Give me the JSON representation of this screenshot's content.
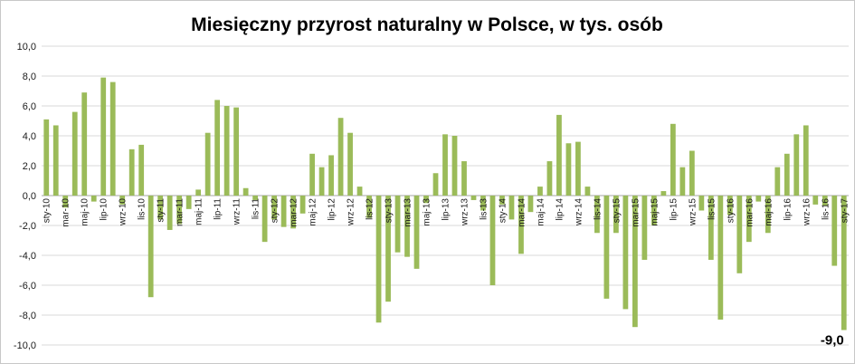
{
  "chart_data": {
    "type": "bar",
    "title": "Miesięczny przyrost naturalny w Polsce, w tys. osób",
    "xlabel": "",
    "ylabel": "",
    "ylim": [
      -10,
      10
    ],
    "y_ticks": [
      "10,0",
      "8,0",
      "6,0",
      "4,0",
      "2,0",
      "0,0",
      "-2,0",
      "-4,0",
      "-6,0",
      "-8,0",
      "-10,0"
    ],
    "y_tick_values": [
      10,
      8,
      6,
      4,
      2,
      0,
      -2,
      -4,
      -6,
      -8,
      -10
    ],
    "grid": true,
    "legend": "none",
    "bar_color": "#9bbb59",
    "categories": [
      "sty-10",
      "lut-10",
      "mar-10",
      "kwi-10",
      "maj-10",
      "cze-10",
      "lip-10",
      "sie-10",
      "wrz-10",
      "paź-10",
      "lis-10",
      "gru-10",
      "sty-11",
      "lut-11",
      "mar-11",
      "kwi-11",
      "maj-11",
      "cze-11",
      "lip-11",
      "sie-11",
      "wrz-11",
      "paź-11",
      "lis-11",
      "gru-11",
      "sty-12",
      "lut-12",
      "mar-12",
      "kwi-12",
      "maj-12",
      "cze-12",
      "lip-12",
      "sie-12",
      "wrz-12",
      "paź-12",
      "lis-12",
      "gru-12",
      "sty-13",
      "lut-13",
      "mar-13",
      "kwi-13",
      "maj-13",
      "cze-13",
      "lip-13",
      "sie-13",
      "wrz-13",
      "paź-13",
      "lis-13",
      "gru-13",
      "sty-14",
      "lut-14",
      "mar-14",
      "kwi-14",
      "maj-14",
      "cze-14",
      "lip-14",
      "sie-14",
      "wrz-14",
      "paź-14",
      "lis-14",
      "gru-14",
      "sty-15",
      "lut-15",
      "mar-15",
      "kwi-15",
      "maj-15",
      "cze-15",
      "lip-15",
      "sie-15",
      "wrz-15",
      "paź-15",
      "lis-15",
      "gru-15",
      "sty-16",
      "lut-16",
      "mar-16",
      "kwi-16",
      "maj-16",
      "cze-16",
      "lip-16",
      "sie-16",
      "wrz-16",
      "paź-16",
      "lis-16",
      "gru-16",
      "sty-17"
    ],
    "shown_tick_labels": [
      "sty-10",
      "mar-10",
      "maj-10",
      "lip-10",
      "wrz-10",
      "lis-10",
      "sty-11",
      "mar-11",
      "maj-11",
      "lip-11",
      "wrz-11",
      "lis-11",
      "sty-12",
      "mar-12",
      "maj-12",
      "lip-12",
      "wrz-12",
      "lis-12",
      "sty-13",
      "mar-13",
      "maj-13",
      "lip-13",
      "wrz-13",
      "lis-13",
      "sty-14",
      "mar-14",
      "maj-14",
      "lip-14",
      "wrz-14",
      "lis-14",
      "sty-15",
      "mar-15",
      "maj-15",
      "lip-15",
      "wrz-15",
      "lis-15",
      "sty-16",
      "mar-16",
      "maj-16",
      "lip-16",
      "wrz-16",
      "lis-16",
      "sty-17"
    ],
    "values": [
      5.1,
      4.7,
      -0.8,
      5.6,
      6.9,
      -0.4,
      7.9,
      7.6,
      -0.6,
      3.1,
      3.4,
      -6.8,
      -1.6,
      -2.3,
      -1.9,
      -0.9,
      0.4,
      4.2,
      6.4,
      6.0,
      5.9,
      0.5,
      -0.3,
      -3.1,
      -1.6,
      -2.1,
      -2.2,
      -1.2,
      2.8,
      1.9,
      2.7,
      5.2,
      4.2,
      0.6,
      -1.5,
      -8.5,
      -7.1,
      -3.8,
      -4.1,
      -4.9,
      -0.5,
      1.5,
      4.1,
      4.0,
      2.3,
      -0.3,
      -1.0,
      -6.0,
      -0.6,
      -1.6,
      -3.9,
      -1.1,
      0.6,
      2.3,
      5.4,
      3.5,
      3.6,
      0.6,
      -2.5,
      -6.9,
      -2.5,
      -7.6,
      -8.8,
      -4.3,
      -2.0,
      0.3,
      4.8,
      1.9,
      3.0,
      -1.0,
      -4.3,
      -8.3,
      -1.3,
      -5.2,
      -3.1,
      -0.4,
      -2.5,
      1.9,
      2.8,
      4.1,
      4.7,
      -0.6,
      -0.7,
      -4.7,
      -9.0
    ],
    "data_labels": [
      {
        "category": "sty-17",
        "text": "-9,0"
      }
    ]
  }
}
